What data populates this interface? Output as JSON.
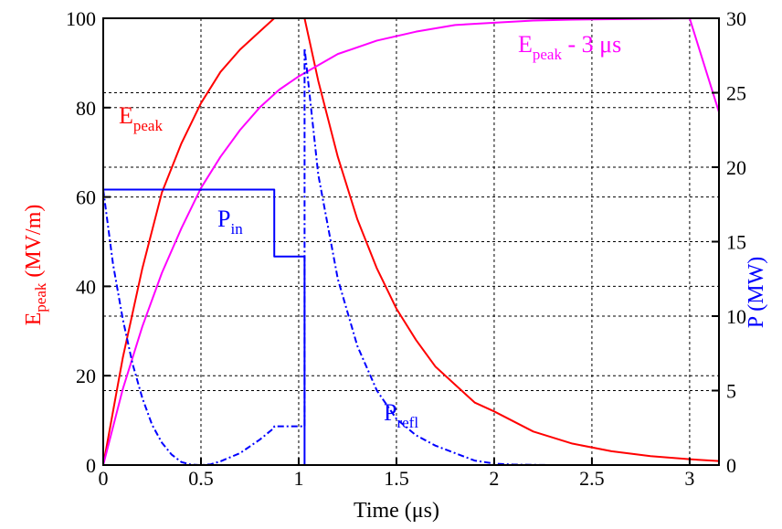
{
  "chart_data": {
    "type": "line",
    "x_axis": {
      "label": "Time (μs)",
      "min": 0,
      "max": 3.15,
      "ticks": [
        0,
        0.5,
        1,
        1.5,
        2,
        2.5,
        3
      ],
      "tick_labels": [
        "0",
        "0.5",
        "1",
        "1.5",
        "2",
        "2.5",
        "3"
      ]
    },
    "y_left": {
      "label_main": "E",
      "label_sub": "peak",
      "label_rest": " (MV/m)",
      "min": 0,
      "max": 100,
      "ticks": [
        0,
        20,
        40,
        60,
        80,
        100
      ],
      "tick_labels": [
        "0",
        "20",
        "40",
        "60",
        "80",
        "100"
      ]
    },
    "y_right": {
      "label": "P (MW)",
      "min": 0,
      "max": 30,
      "ticks": [
        0,
        5,
        10,
        15,
        20,
        25,
        30
      ],
      "tick_labels": [
        "0",
        "5",
        "10",
        "15",
        "20",
        "25",
        "30"
      ]
    },
    "grid": true,
    "series": [
      {
        "name_main": "E",
        "name_sub": "peak",
        "axis": "left",
        "color": "#ff0000",
        "style": "solid",
        "x": [
          0,
          0.1,
          0.2,
          0.3,
          0.4,
          0.5,
          0.6,
          0.7,
          0.8,
          0.875,
          0.9,
          0.95,
          1.0,
          1.03,
          1.1,
          1.2,
          1.3,
          1.4,
          1.5,
          1.6,
          1.7,
          1.8,
          1.9,
          2.0,
          2.2,
          2.4,
          2.6,
          2.8,
          3.0,
          3.15
        ],
        "y": [
          0,
          24,
          44,
          61,
          72,
          81,
          88,
          93,
          97,
          100,
          100,
          100,
          100,
          100,
          86,
          69,
          55,
          44,
          35,
          28,
          22,
          18,
          14,
          12,
          7.5,
          4.8,
          3.1,
          2.0,
          1.3,
          0.9
        ]
      },
      {
        "name_main": "E",
        "name_sub": "peak",
        "name_rest": " - 3 μs",
        "axis": "left",
        "color": "#ff00ff",
        "style": "solid",
        "x": [
          0,
          0.1,
          0.2,
          0.3,
          0.4,
          0.5,
          0.6,
          0.7,
          0.8,
          0.9,
          1.0,
          1.2,
          1.4,
          1.6,
          1.8,
          2.0,
          2.2,
          2.4,
          2.6,
          2.8,
          3.0,
          3.15
        ],
        "y": [
          0,
          17,
          31,
          43,
          53,
          62,
          69,
          75,
          80,
          84,
          87,
          92,
          95,
          97,
          98.5,
          99,
          99.5,
          99.7,
          99.8,
          99.9,
          100,
          79
        ]
      },
      {
        "name_main": "P",
        "name_sub": "in",
        "axis": "right",
        "color": "#0000ff",
        "style": "solid",
        "x": [
          0,
          0.875,
          0.875,
          1.03,
          1.03,
          3.15
        ],
        "y": [
          18.5,
          18.5,
          14,
          14,
          0,
          0
        ]
      },
      {
        "name_main": "P",
        "name_sub": "refl",
        "axis": "right",
        "color": "#0000ff",
        "style": "dashdot",
        "x": [
          0,
          0.05,
          0.1,
          0.15,
          0.2,
          0.25,
          0.3,
          0.35,
          0.4,
          0.45,
          0.5,
          0.55,
          0.6,
          0.7,
          0.8,
          0.875,
          0.875,
          1.03,
          1.03,
          1.1,
          1.2,
          1.3,
          1.4,
          1.5,
          1.6,
          1.7,
          1.8,
          1.9,
          2.0,
          2.1,
          2.3,
          3.15
        ],
        "y": [
          18.5,
          13.5,
          9.8,
          6.8,
          4.5,
          2.7,
          1.5,
          0.7,
          0.2,
          0.03,
          0,
          0.05,
          0.25,
          0.8,
          1.7,
          2.5,
          2.6,
          2.6,
          28,
          19.5,
          12.5,
          8,
          5,
          3.1,
          2,
          1.3,
          0.8,
          0.3,
          0.1,
          0.03,
          0,
          0
        ]
      }
    ]
  }
}
